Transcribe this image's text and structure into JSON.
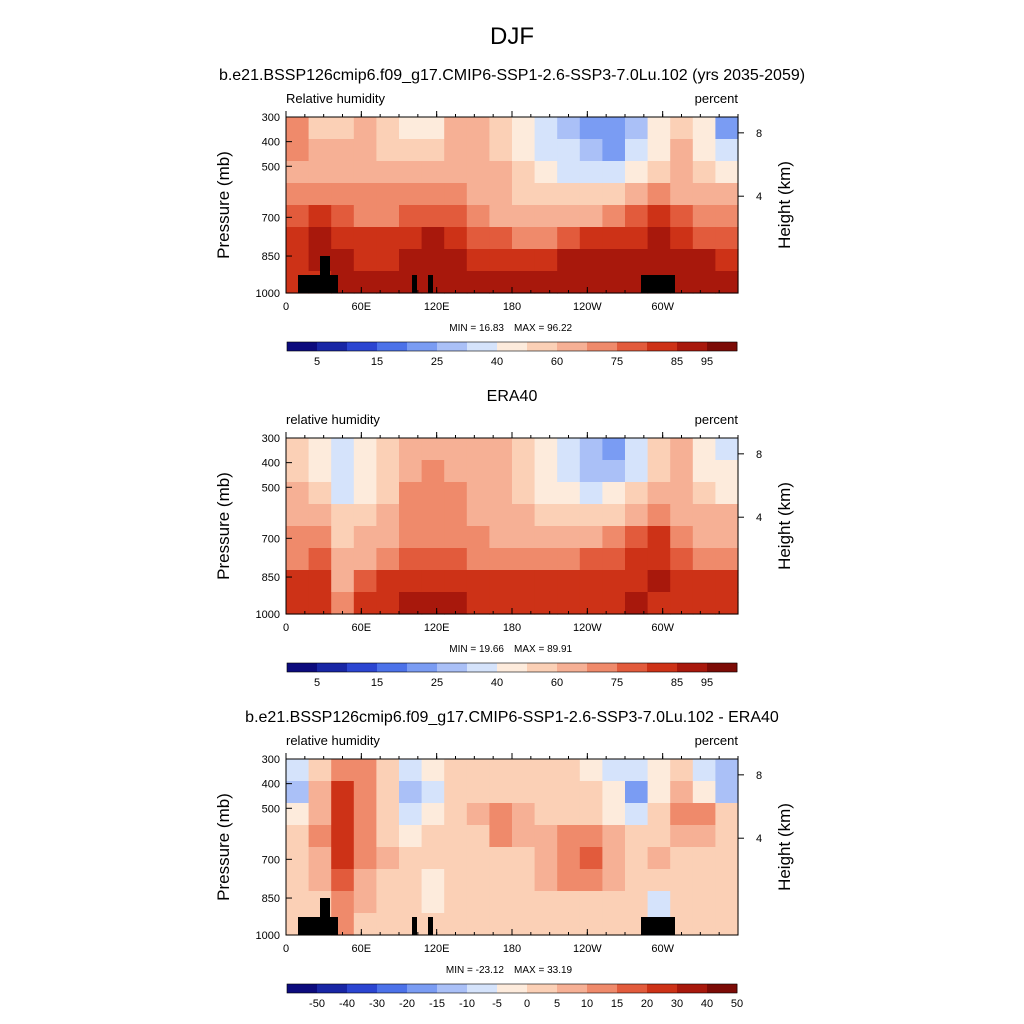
{
  "figure": {
    "title": "DJF"
  },
  "chart_data": [
    {
      "type": "heatmap",
      "title": "b.e21.BSSP126cmip6.f09_g17.CMIP6-SSP1-2.6-SSP3-7.0Lu.102 (yrs 2035-2059)",
      "left_label": "Relative humidity",
      "right_label": "percent",
      "ylabel": "Pressure (mb)",
      "y2label": "Height (km)",
      "y_ticks": [
        "300",
        "400",
        "500",
        "700",
        "850",
        "1000"
      ],
      "y2_ticks": [
        "8",
        "4"
      ],
      "x_ticks": [
        "0",
        "60E",
        "120E",
        "180",
        "120W",
        "60W"
      ],
      "min_text": "MIN = 16.83",
      "max_text": "MAX = 96.22",
      "colorbar_labels": [
        "5",
        "15",
        "25",
        "40",
        "60",
        "75",
        "85",
        "95"
      ],
      "colorbar_colors": [
        "#0c0b7d",
        "#1826a5",
        "#2b45d1",
        "#4c72e9",
        "#7a9cf3",
        "#aac0f7",
        "#d5e3fb",
        "#fdebdc",
        "#fbd0b6",
        "#f6b095",
        "#ef8a6b",
        "#e25b3c",
        "#cd3217",
        "#a8180c",
        "#7c0b06"
      ],
      "grid_rows": 8,
      "grid_cols": 20,
      "z": [
        [
          74,
          58,
          55,
          60,
          52,
          44,
          46,
          62,
          60,
          52,
          44,
          34,
          28,
          22,
          20,
          28,
          44,
          58,
          40,
          22
        ],
        [
          74,
          62,
          60,
          64,
          58,
          55,
          56,
          62,
          62,
          56,
          44,
          36,
          32,
          26,
          24,
          34,
          46,
          60,
          48,
          32
        ],
        [
          68,
          62,
          62,
          64,
          62,
          62,
          64,
          64,
          66,
          60,
          50,
          40,
          38,
          36,
          38,
          46,
          58,
          62,
          58,
          48
        ],
        [
          72,
          72,
          74,
          72,
          70,
          72,
          70,
          72,
          66,
          62,
          56,
          52,
          50,
          50,
          56,
          64,
          70,
          68,
          66,
          62
        ],
        [
          76,
          82,
          78,
          74,
          74,
          78,
          78,
          76,
          72,
          68,
          62,
          62,
          64,
          68,
          72,
          78,
          82,
          76,
          72,
          70
        ],
        [
          80,
          86,
          84,
          80,
          80,
          84,
          86,
          80,
          78,
          76,
          74,
          74,
          76,
          80,
          82,
          84,
          86,
          82,
          78,
          76
        ],
        [
          82,
          86,
          86,
          84,
          84,
          86,
          88,
          86,
          84,
          84,
          84,
          84,
          86,
          86,
          86,
          86,
          86,
          86,
          86,
          84
        ],
        [
          82,
          84,
          86,
          86,
          86,
          88,
          88,
          88,
          88,
          89,
          90,
          91,
          92,
          92,
          90,
          86,
          86,
          88,
          88,
          86
        ]
      ]
    },
    {
      "type": "heatmap",
      "title": "ERA40",
      "left_label": "relative humidity",
      "right_label": "percent",
      "ylabel": "Pressure (mb)",
      "y2label": "Height (km)",
      "y_ticks": [
        "300",
        "400",
        "500",
        "700",
        "850",
        "1000"
      ],
      "y2_ticks": [
        "8",
        "4"
      ],
      "x_ticks": [
        "0",
        "60E",
        "120E",
        "180",
        "120W",
        "60W"
      ],
      "min_text": "MIN = 19.66",
      "max_text": "MAX = 89.91",
      "colorbar_labels": [
        "5",
        "15",
        "25",
        "40",
        "60",
        "75",
        "85",
        "95"
      ],
      "colorbar_colors": [
        "#0c0b7d",
        "#1826a5",
        "#2b45d1",
        "#4c72e9",
        "#7a9cf3",
        "#aac0f7",
        "#d5e3fb",
        "#fdebdc",
        "#fbd0b6",
        "#f6b095",
        "#ef8a6b",
        "#e25b3c",
        "#cd3217",
        "#a8180c",
        "#7c0b06"
      ],
      "grid_rows": 8,
      "grid_cols": 20,
      "z": [
        [
          56,
          46,
          34,
          42,
          52,
          66,
          68,
          66,
          66,
          60,
          50,
          40,
          32,
          26,
          24,
          36,
          56,
          60,
          40,
          38
        ],
        [
          58,
          48,
          30,
          40,
          54,
          68,
          70,
          68,
          66,
          60,
          52,
          42,
          34,
          26,
          26,
          38,
          56,
          60,
          44,
          40
        ],
        [
          62,
          52,
          38,
          46,
          58,
          70,
          72,
          70,
          66,
          62,
          56,
          46,
          40,
          38,
          40,
          50,
          60,
          62,
          52,
          48
        ],
        [
          66,
          62,
          52,
          56,
          62,
          72,
          74,
          72,
          68,
          64,
          60,
          56,
          54,
          54,
          58,
          64,
          72,
          66,
          62,
          60
        ],
        [
          70,
          72,
          54,
          62,
          66,
          72,
          72,
          70,
          70,
          66,
          64,
          62,
          62,
          66,
          70,
          76,
          80,
          70,
          66,
          66
        ],
        [
          74,
          76,
          60,
          66,
          72,
          76,
          78,
          76,
          74,
          72,
          70,
          70,
          72,
          76,
          78,
          82,
          84,
          76,
          74,
          72
        ],
        [
          80,
          80,
          66,
          76,
          80,
          82,
          82,
          82,
          82,
          80,
          80,
          80,
          82,
          82,
          84,
          84,
          86,
          82,
          82,
          80
        ],
        [
          82,
          82,
          72,
          80,
          84,
          86,
          86,
          86,
          84,
          84,
          84,
          84,
          84,
          84,
          84,
          86,
          84,
          82,
          84,
          84
        ]
      ]
    },
    {
      "type": "heatmap",
      "title": "b.e21.BSSP126cmip6.f09_g17.CMIP6-SSP1-2.6-SSP3-7.0Lu.102 - ERA40",
      "left_label": "relative humidity",
      "right_label": "percent",
      "ylabel": "Pressure (mb)",
      "y2label": "Height (km)",
      "y_ticks": [
        "300",
        "400",
        "500",
        "700",
        "850",
        "1000"
      ],
      "y2_ticks": [
        "8",
        "4"
      ],
      "x_ticks": [
        "0",
        "60E",
        "120E",
        "180",
        "120W",
        "60W"
      ],
      "min_text": "MIN = -23.12",
      "max_text": "MAX = 33.19",
      "colorbar_labels": [
        "-50",
        "-40",
        "-30",
        "-20",
        "-15",
        "-10",
        "-5",
        "0",
        "5",
        "10",
        "15",
        "20",
        "30",
        "40",
        "50"
      ],
      "colorbar_colors": [
        "#0c0b7d",
        "#1826a5",
        "#2b45d1",
        "#4c72e9",
        "#7a9cf3",
        "#aac0f7",
        "#d5e3fb",
        "#fdebdc",
        "#fbd0b6",
        "#f6b095",
        "#ef8a6b",
        "#e25b3c",
        "#cd3217",
        "#a8180c",
        "#7c0b06"
      ],
      "grid_rows": 8,
      "grid_cols": 20,
      "z": [
        [
          -8,
          4,
          12,
          10,
          4,
          -8,
          -4,
          2,
          0,
          2,
          0,
          2,
          0,
          -2,
          -6,
          -10,
          -2,
          2,
          -8,
          -14
        ],
        [
          -12,
          6,
          22,
          12,
          2,
          -14,
          -6,
          2,
          2,
          4,
          4,
          4,
          2,
          0,
          -4,
          -16,
          -2,
          6,
          -4,
          -12
        ],
        [
          -4,
          8,
          26,
          14,
          4,
          -10,
          -2,
          4,
          8,
          14,
          8,
          4,
          2,
          2,
          -2,
          -6,
          4,
          14,
          12,
          0
        ],
        [
          2,
          10,
          24,
          12,
          4,
          -4,
          0,
          2,
          4,
          10,
          6,
          6,
          12,
          14,
          6,
          2,
          0,
          8,
          6,
          2
        ],
        [
          4,
          8,
          20,
          10,
          6,
          2,
          2,
          2,
          2,
          4,
          4,
          8,
          14,
          16,
          8,
          4,
          6,
          4,
          2,
          2
        ],
        [
          4,
          6,
          16,
          8,
          2,
          2,
          -2,
          0,
          0,
          2,
          4,
          6,
          10,
          10,
          6,
          2,
          4,
          2,
          2,
          2
        ],
        [
          2,
          4,
          12,
          6,
          2,
          0,
          -4,
          0,
          0,
          2,
          2,
          4,
          4,
          4,
          2,
          2,
          -8,
          2,
          2,
          2
        ],
        [
          0,
          2,
          10,
          4,
          2,
          0,
          0,
          0,
          0,
          2,
          2,
          4,
          4,
          4,
          4,
          0,
          -6,
          4,
          2,
          0
        ]
      ]
    }
  ]
}
